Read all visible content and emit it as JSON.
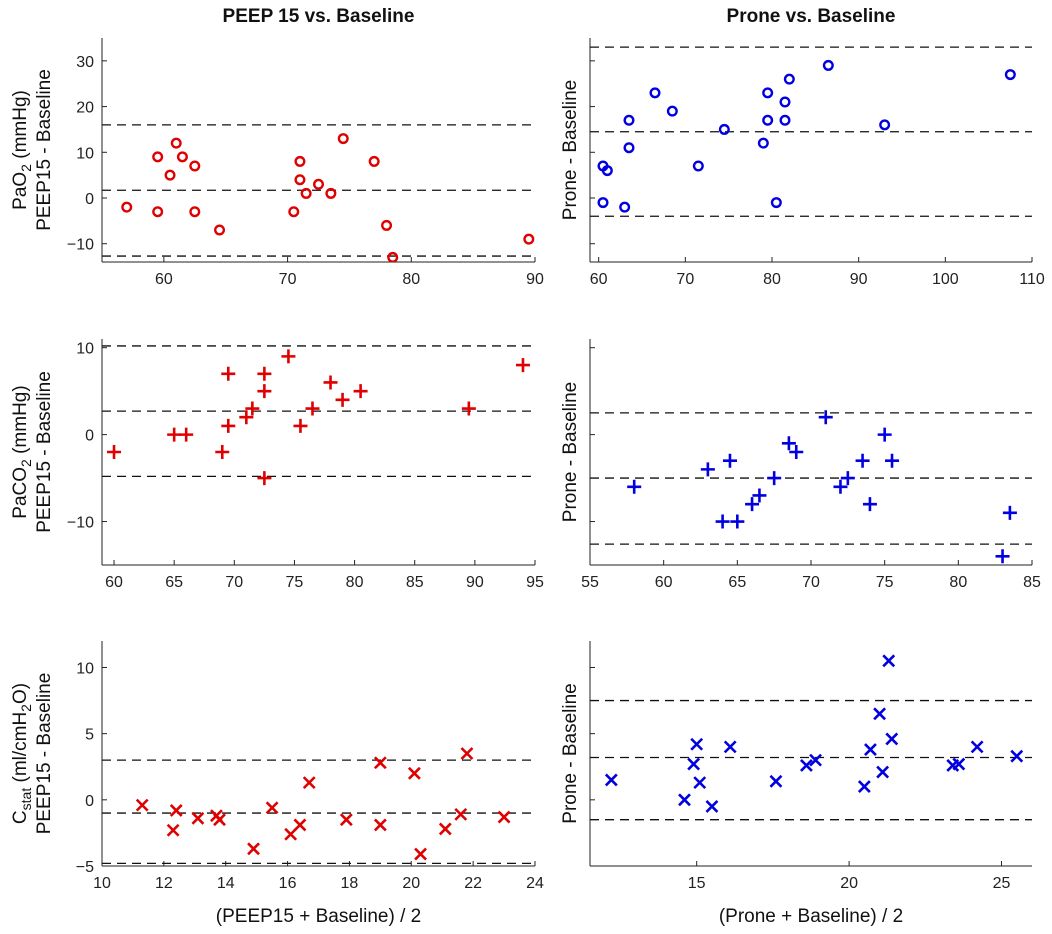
{
  "chart_data": [
    {
      "id": "paO2-peep15",
      "type": "scatter",
      "title": "PEEP 15 vs. Baseline",
      "ylabel_main": "PaO",
      "ylabel_sub": "2",
      "ylabel_unit": " (mmHg)",
      "ylabel_second": "PEEP15 - Baseline",
      "xlabel": "",
      "marker": "circle",
      "color": "#e00000",
      "xlim": [
        55,
        90
      ],
      "ylim": [
        -14,
        35
      ],
      "xticks": [
        60,
        70,
        80,
        90
      ],
      "yticks": [
        -10,
        0,
        10,
        20,
        30
      ],
      "show_xtick_labels": true,
      "show_ytick_labels": true,
      "reference_lines": [
        16,
        1.7,
        -12.7
      ],
      "points": [
        {
          "x": 57,
          "y": -2
        },
        {
          "x": 59.5,
          "y": 9
        },
        {
          "x": 59.5,
          "y": -3
        },
        {
          "x": 60.5,
          "y": 5
        },
        {
          "x": 61,
          "y": 12
        },
        {
          "x": 61.5,
          "y": 9
        },
        {
          "x": 62.5,
          "y": 7
        },
        {
          "x": 62.5,
          "y": -3
        },
        {
          "x": 64.5,
          "y": -7
        },
        {
          "x": 70.5,
          "y": -3
        },
        {
          "x": 71,
          "y": 8
        },
        {
          "x": 71,
          "y": 4
        },
        {
          "x": 71.5,
          "y": 1
        },
        {
          "x": 72.5,
          "y": 3
        },
        {
          "x": 73.5,
          "y": 1
        },
        {
          "x": 74.5,
          "y": 13
        },
        {
          "x": 77,
          "y": 8
        },
        {
          "x": 78,
          "y": -6
        },
        {
          "x": 78.5,
          "y": -13
        },
        {
          "x": 89.5,
          "y": -9
        }
      ]
    },
    {
      "id": "paO2-prone",
      "type": "scatter",
      "title": "Prone vs. Baseline",
      "ylabel_main": "",
      "ylabel_sub": "",
      "ylabel_unit": "",
      "ylabel_second": "Prone - Baseline",
      "xlabel": "",
      "marker": "circle",
      "color": "#0000e0",
      "xlim": [
        59,
        110
      ],
      "ylim": [
        -14,
        35
      ],
      "xticks": [
        60,
        70,
        80,
        90,
        100,
        110
      ],
      "yticks": [
        -10,
        0,
        10,
        20,
        30
      ],
      "show_xtick_labels": true,
      "show_ytick_labels": false,
      "reference_lines": [
        33,
        14.5,
        -4
      ],
      "points": [
        {
          "x": 60.5,
          "y": 7
        },
        {
          "x": 61,
          "y": 6
        },
        {
          "x": 60.5,
          "y": -1
        },
        {
          "x": 63,
          "y": -2
        },
        {
          "x": 63.5,
          "y": 17
        },
        {
          "x": 63.5,
          "y": 11
        },
        {
          "x": 66.5,
          "y": 23
        },
        {
          "x": 68.5,
          "y": 19
        },
        {
          "x": 71.5,
          "y": 7
        },
        {
          "x": 74.5,
          "y": 15
        },
        {
          "x": 79,
          "y": 12
        },
        {
          "x": 79.5,
          "y": 23
        },
        {
          "x": 79.5,
          "y": 17
        },
        {
          "x": 80.5,
          "y": -1
        },
        {
          "x": 81.5,
          "y": 21
        },
        {
          "x": 81.5,
          "y": 17
        },
        {
          "x": 82,
          "y": 26
        },
        {
          "x": 86.5,
          "y": 29
        },
        {
          "x": 93,
          "y": 16
        },
        {
          "x": 107.5,
          "y": 27
        }
      ]
    },
    {
      "id": "paCO2-peep15",
      "type": "scatter",
      "title": "",
      "ylabel_main": "PaCO",
      "ylabel_sub": "2",
      "ylabel_unit": " (mmHg)",
      "ylabel_second": "PEEP15 - Baseline",
      "xlabel": "",
      "marker": "plus",
      "color": "#e00000",
      "xlim": [
        59,
        95
      ],
      "ylim": [
        -15,
        11
      ],
      "xticks": [
        60,
        65,
        70,
        75,
        80,
        85,
        90,
        95
      ],
      "yticks": [
        -10,
        0,
        10
      ],
      "show_xtick_labels": true,
      "show_ytick_labels": true,
      "reference_lines": [
        10.2,
        2.7,
        -4.8
      ],
      "points": [
        {
          "x": 60,
          "y": -2
        },
        {
          "x": 65,
          "y": 0
        },
        {
          "x": 66,
          "y": 0
        },
        {
          "x": 69,
          "y": -2
        },
        {
          "x": 69.5,
          "y": 7
        },
        {
          "x": 69.5,
          "y": 1
        },
        {
          "x": 71,
          "y": 2
        },
        {
          "x": 71.5,
          "y": 3
        },
        {
          "x": 72.5,
          "y": 7
        },
        {
          "x": 72.5,
          "y": 5
        },
        {
          "x": 72.5,
          "y": -5
        },
        {
          "x": 74.5,
          "y": 9
        },
        {
          "x": 75.5,
          "y": 1
        },
        {
          "x": 76.5,
          "y": 3
        },
        {
          "x": 78,
          "y": 6
        },
        {
          "x": 79,
          "y": 4
        },
        {
          "x": 80.5,
          "y": 5
        },
        {
          "x": 89.5,
          "y": 3
        },
        {
          "x": 94,
          "y": 8
        }
      ]
    },
    {
      "id": "paCO2-prone",
      "type": "scatter",
      "title": "",
      "ylabel_main": "",
      "ylabel_sub": "",
      "ylabel_unit": "",
      "ylabel_second": "Prone - Baseline",
      "xlabel": "",
      "marker": "plus",
      "color": "#0000e0",
      "xlim": [
        55,
        85
      ],
      "ylim": [
        -15,
        11
      ],
      "xticks": [
        55,
        60,
        65,
        70,
        75,
        80,
        85
      ],
      "yticks": [
        -10,
        0,
        10
      ],
      "show_xtick_labels": true,
      "show_ytick_labels": false,
      "reference_lines": [
        2.5,
        -5,
        -12.6
      ],
      "points": [
        {
          "x": 58,
          "y": -6
        },
        {
          "x": 63,
          "y": -4
        },
        {
          "x": 64,
          "y": -10
        },
        {
          "x": 64.5,
          "y": -3
        },
        {
          "x": 65,
          "y": -10
        },
        {
          "x": 66,
          "y": -8
        },
        {
          "x": 66.5,
          "y": -7
        },
        {
          "x": 67.5,
          "y": -5
        },
        {
          "x": 68.5,
          "y": -1
        },
        {
          "x": 69,
          "y": -2
        },
        {
          "x": 71,
          "y": 2
        },
        {
          "x": 72,
          "y": -6
        },
        {
          "x": 72.5,
          "y": -5
        },
        {
          "x": 73.5,
          "y": -3
        },
        {
          "x": 74,
          "y": -8
        },
        {
          "x": 75,
          "y": 0
        },
        {
          "x": 75.5,
          "y": -3
        },
        {
          "x": 83,
          "y": -14
        },
        {
          "x": 83.5,
          "y": -9
        }
      ]
    },
    {
      "id": "cstat-peep15",
      "type": "scatter",
      "title": "",
      "ylabel_main": "C",
      "ylabel_sub": "stat",
      "ylabel_unit": " (ml/cmH",
      "ylabel_unit_sub": "2",
      "ylabel_unit_end": "O)",
      "ylabel_second": "PEEP15 - Baseline",
      "xlabel": "(PEEP15 + Baseline) / 2",
      "marker": "x",
      "color": "#e00000",
      "xlim": [
        10,
        24
      ],
      "ylim": [
        -5,
        12
      ],
      "xticks": [
        10,
        12,
        14,
        16,
        18,
        20,
        22,
        24
      ],
      "yticks": [
        -5,
        0,
        5,
        10
      ],
      "show_xtick_labels": true,
      "show_ytick_labels": true,
      "reference_lines": [
        3,
        -1,
        -4.8
      ],
      "points": [
        {
          "x": 11.3,
          "y": -0.4
        },
        {
          "x": 12.3,
          "y": -2.3
        },
        {
          "x": 12.4,
          "y": -0.8
        },
        {
          "x": 13.1,
          "y": -1.4
        },
        {
          "x": 13.7,
          "y": -1.2
        },
        {
          "x": 13.8,
          "y": -1.5
        },
        {
          "x": 14.9,
          "y": -3.7
        },
        {
          "x": 15.5,
          "y": -0.6
        },
        {
          "x": 16.1,
          "y": -2.6
        },
        {
          "x": 16.4,
          "y": -1.9
        },
        {
          "x": 16.7,
          "y": 1.3
        },
        {
          "x": 17.9,
          "y": -1.5
        },
        {
          "x": 19,
          "y": 2.8
        },
        {
          "x": 19,
          "y": -1.9
        },
        {
          "x": 20.1,
          "y": 2
        },
        {
          "x": 20.3,
          "y": -4.1
        },
        {
          "x": 21.1,
          "y": -2.2
        },
        {
          "x": 21.6,
          "y": -1.1
        },
        {
          "x": 21.8,
          "y": 3.5
        },
        {
          "x": 23,
          "y": -1.3
        }
      ]
    },
    {
      "id": "cstat-prone",
      "type": "scatter",
      "title": "",
      "ylabel_main": "",
      "ylabel_sub": "",
      "ylabel_unit": "",
      "ylabel_second": "Prone - Baseline",
      "xlabel": "(Prone + Baseline) / 2",
      "marker": "x",
      "color": "#0000e0",
      "xlim": [
        11.5,
        26
      ],
      "ylim": [
        -5,
        12
      ],
      "xticks": [
        15,
        20,
        25
      ],
      "yticks": [
        -5,
        0,
        5,
        10
      ],
      "show_xtick_labels": true,
      "show_ytick_labels": false,
      "reference_lines": [
        7.5,
        3.2,
        -1.5
      ],
      "points": [
        {
          "x": 12.2,
          "y": 1.5
        },
        {
          "x": 14.6,
          "y": 0
        },
        {
          "x": 14.9,
          "y": 2.7
        },
        {
          "x": 15,
          "y": 4.2
        },
        {
          "x": 15.1,
          "y": 1.3
        },
        {
          "x": 15.5,
          "y": -0.5
        },
        {
          "x": 16.1,
          "y": 4
        },
        {
          "x": 17.6,
          "y": 1.4
        },
        {
          "x": 18.6,
          "y": 2.6
        },
        {
          "x": 18.9,
          "y": 3
        },
        {
          "x": 20.5,
          "y": 1
        },
        {
          "x": 20.7,
          "y": 3.8
        },
        {
          "x": 21,
          "y": 6.5
        },
        {
          "x": 21.1,
          "y": 2.1
        },
        {
          "x": 21.3,
          "y": 10.5
        },
        {
          "x": 21.4,
          "y": 4.6
        },
        {
          "x": 23.4,
          "y": 2.6
        },
        {
          "x": 23.6,
          "y": 2.7
        },
        {
          "x": 24.2,
          "y": 4
        },
        {
          "x": 25.5,
          "y": 3.3
        }
      ]
    }
  ]
}
